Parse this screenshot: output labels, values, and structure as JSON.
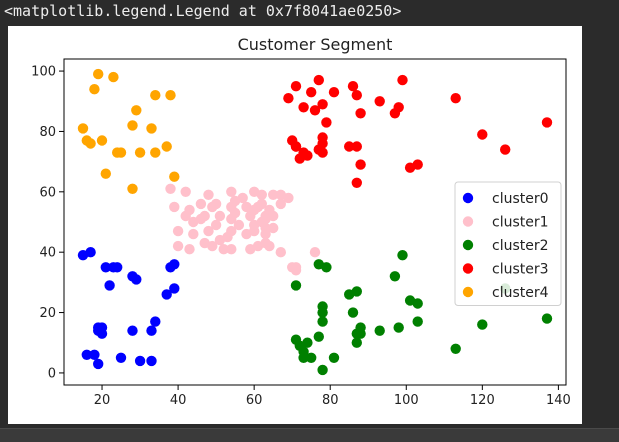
{
  "output": {
    "repr_text": "<matplotlib.legend.Legend at 0x7f8041ae0250>"
  },
  "colors": {
    "page_background": "#2b2b2b",
    "figure_background": "#ffffff",
    "axes_edge": "#000000"
  },
  "chart_data": {
    "type": "scatter",
    "title": "Customer Segment",
    "xlabel": "",
    "ylabel": "",
    "xlim": [
      10,
      142
    ],
    "ylim": [
      -4,
      104
    ],
    "xticks": [
      20,
      40,
      60,
      80,
      100,
      120,
      140
    ],
    "yticks": [
      0,
      20,
      40,
      60,
      80,
      100
    ],
    "grid": false,
    "legend_position": "center-right",
    "series": [
      {
        "name": "cluster0",
        "color": "#0000ff",
        "points": [
          [
            15,
            39
          ],
          [
            16,
            6
          ],
          [
            17,
            40
          ],
          [
            18,
            6
          ],
          [
            19,
            3
          ],
          [
            19,
            14
          ],
          [
            19,
            15
          ],
          [
            20,
            13
          ],
          [
            20,
            15
          ],
          [
            21,
            35
          ],
          [
            23,
            35
          ],
          [
            24,
            35
          ],
          [
            22,
            29
          ],
          [
            25,
            5
          ],
          [
            28,
            14
          ],
          [
            28,
            32
          ],
          [
            29,
            31
          ],
          [
            30,
            4
          ],
          [
            33,
            4
          ],
          [
            33,
            14
          ],
          [
            34,
            17
          ],
          [
            37,
            26
          ],
          [
            38,
            35
          ],
          [
            39,
            36
          ],
          [
            39,
            28
          ]
        ]
      },
      {
        "name": "cluster1",
        "color": "#ffc0cb",
        "points": [
          [
            38,
            61
          ],
          [
            39,
            55
          ],
          [
            40,
            47
          ],
          [
            40,
            42
          ],
          [
            42,
            52
          ],
          [
            42,
            60
          ],
          [
            43,
            54
          ],
          [
            43,
            41
          ],
          [
            44,
            50
          ],
          [
            44,
            46
          ],
          [
            46,
            51
          ],
          [
            46,
            56
          ],
          [
            47,
            43
          ],
          [
            47,
            52
          ],
          [
            48,
            59
          ],
          [
            48,
            47
          ],
          [
            49,
            55
          ],
          [
            49,
            42
          ],
          [
            50,
            49
          ],
          [
            50,
            56
          ],
          [
            51,
            52
          ],
          [
            51,
            44
          ],
          [
            52,
            41
          ],
          [
            53,
            45
          ],
          [
            54,
            51
          ],
          [
            54,
            55
          ],
          [
            54,
            60
          ],
          [
            54,
            47
          ],
          [
            54,
            41
          ],
          [
            55,
            57
          ],
          [
            55,
            53
          ],
          [
            56,
            49
          ],
          [
            57,
            58
          ],
          [
            58,
            46
          ],
          [
            58,
            55
          ],
          [
            59,
            41
          ],
          [
            59,
            52
          ],
          [
            60,
            49
          ],
          [
            60,
            47
          ],
          [
            60,
            60
          ],
          [
            60,
            54
          ],
          [
            61,
            55
          ],
          [
            61,
            42
          ],
          [
            62,
            50
          ],
          [
            62,
            56
          ],
          [
            62,
            59
          ],
          [
            63,
            51
          ],
          [
            63,
            46
          ],
          [
            63,
            43
          ],
          [
            63,
            48
          ],
          [
            63,
            52
          ],
          [
            64,
            54
          ],
          [
            64,
            42
          ],
          [
            65,
            59
          ],
          [
            65,
            48
          ],
          [
            65,
            52
          ],
          [
            67,
            56
          ],
          [
            67,
            40
          ],
          [
            67,
            59
          ],
          [
            69,
            58
          ],
          [
            70,
            35
          ],
          [
            71,
            35
          ],
          [
            71,
            34
          ],
          [
            76,
            40
          ]
        ]
      },
      {
        "name": "cluster2",
        "color": "#008000",
        "points": [
          [
            71,
            29
          ],
          [
            71,
            11
          ],
          [
            72,
            9
          ],
          [
            73,
            5
          ],
          [
            73,
            7
          ],
          [
            74,
            10
          ],
          [
            75,
            5
          ],
          [
            77,
            12
          ],
          [
            77,
            36
          ],
          [
            78,
            22
          ],
          [
            78,
            17
          ],
          [
            78,
            20
          ],
          [
            78,
            1
          ],
          [
            79,
            35
          ],
          [
            81,
            5
          ],
          [
            85,
            26
          ],
          [
            86,
            20
          ],
          [
            87,
            27
          ],
          [
            87,
            13
          ],
          [
            87,
            10
          ],
          [
            88,
            13
          ],
          [
            88,
            15
          ],
          [
            93,
            14
          ],
          [
            97,
            32
          ],
          [
            98,
            15
          ],
          [
            99,
            39
          ],
          [
            101,
            24
          ],
          [
            103,
            17
          ],
          [
            103,
            23
          ],
          [
            113,
            8
          ],
          [
            120,
            16
          ],
          [
            126,
            28
          ],
          [
            137,
            18
          ]
        ]
      },
      {
        "name": "cluster3",
        "color": "#ff0000",
        "points": [
          [
            69,
            91
          ],
          [
            70,
            77
          ],
          [
            71,
            95
          ],
          [
            71,
            75
          ],
          [
            71,
            75
          ],
          [
            72,
            71
          ],
          [
            73,
            88
          ],
          [
            73,
            73
          ],
          [
            74,
            72
          ],
          [
            75,
            93
          ],
          [
            76,
            87
          ],
          [
            77,
            97
          ],
          [
            77,
            74
          ],
          [
            78,
            76
          ],
          [
            78,
            89
          ],
          [
            78,
            78
          ],
          [
            78,
            73
          ],
          [
            79,
            83
          ],
          [
            81,
            93
          ],
          [
            85,
            75
          ],
          [
            86,
            95
          ],
          [
            87,
            63
          ],
          [
            87,
            75
          ],
          [
            87,
            92
          ],
          [
            88,
            86
          ],
          [
            88,
            69
          ],
          [
            93,
            90
          ],
          [
            97,
            86
          ],
          [
            98,
            88
          ],
          [
            99,
            97
          ],
          [
            101,
            68
          ],
          [
            103,
            69
          ],
          [
            113,
            91
          ],
          [
            120,
            79
          ],
          [
            126,
            74
          ],
          [
            137,
            83
          ]
        ]
      },
      {
        "name": "cluster4",
        "color": "#ffa500",
        "points": [
          [
            15,
            81
          ],
          [
            16,
            77
          ],
          [
            17,
            76
          ],
          [
            18,
            94
          ],
          [
            19,
            99
          ],
          [
            20,
            77
          ],
          [
            21,
            66
          ],
          [
            23,
            98
          ],
          [
            24,
            73
          ],
          [
            25,
            73
          ],
          [
            28,
            82
          ],
          [
            28,
            61
          ],
          [
            29,
            87
          ],
          [
            30,
            73
          ],
          [
            33,
            81
          ],
          [
            34,
            73
          ],
          [
            34,
            92
          ],
          [
            37,
            75
          ],
          [
            38,
            92
          ],
          [
            39,
            65
          ]
        ]
      }
    ]
  }
}
